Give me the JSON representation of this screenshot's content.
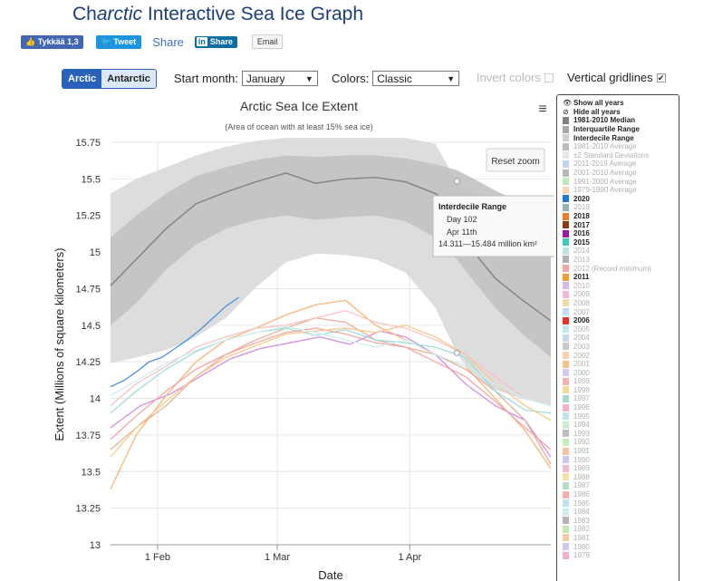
{
  "header": {
    "title_pre": "Ch",
    "title_italic": "arctic",
    "title_post": " Interactive Sea Ice Graph"
  },
  "share": {
    "facebook": "Tykkää 1,3",
    "twitter": "Tweet",
    "share": "Share",
    "linkedin_logo": "in",
    "linkedin": "Share",
    "email": "Email"
  },
  "controls": {
    "hemisphere": [
      "Arctic",
      "Antarctic"
    ],
    "start_month_label": "Start month:",
    "start_month_value": "January",
    "colors_label": "Colors:",
    "colors_value": "Classic",
    "invert_label": "Invert colors",
    "gridlines_label": "Vertical gridlines",
    "gridlines_checked": "✔"
  },
  "chart_controls": {
    "reset_zoom": "Reset zoom",
    "menu_icon": "≡"
  },
  "tooltip": {
    "title": "Interdecile Range",
    "day": "Day 102",
    "date": "Apr 11th",
    "range": "14.311—15.484 million km²"
  },
  "legend": [
    {
      "label": "Show all years",
      "icon": "eye-icon",
      "bold": true
    },
    {
      "label": "Hide all years",
      "icon": "eye-slash-icon",
      "bold": true
    },
    {
      "label": "1981-2010 Median",
      "color": "#808080",
      "bold": true
    },
    {
      "label": "Interquartile Range",
      "color": "#a8a8a8",
      "bold": true
    },
    {
      "label": "Interdecile Range",
      "color": "#cfcfcf",
      "bold": true
    },
    {
      "label": "1981-2010 Average",
      "color": "#bdbdbd",
      "bold": false
    },
    {
      "label": "±2 Standard Deviations",
      "color": "#e6e6e6",
      "bold": false
    },
    {
      "label": "2011-2019 Average",
      "color": "#bcd6f0",
      "bold": false
    },
    {
      "label": "2001-2010 Average",
      "color": "#b8b8b8",
      "bold": false
    },
    {
      "label": "1991-2000 Average",
      "color": "#bfe8bf",
      "bold": false
    },
    {
      "label": "1979-1990 Average",
      "color": "#f4d6b0",
      "bold": false
    },
    {
      "label": "2020",
      "color": "#1f78d6",
      "bold": true
    },
    {
      "label": "2019",
      "color": "#8fb6b6",
      "bold": false
    },
    {
      "label": "2018",
      "color": "#f07f22",
      "bold": true
    },
    {
      "label": "2017",
      "color": "#8b3a16",
      "bold": true
    },
    {
      "label": "2016",
      "color": "#9b19a8",
      "bold": true
    },
    {
      "label": "2015",
      "color": "#3cc8c0",
      "bold": true
    },
    {
      "label": "2014",
      "color": "#b5e6e3",
      "bold": false
    },
    {
      "label": "2013",
      "color": "#b0b0b0",
      "bold": false
    },
    {
      "label": "2012 (Record minimum)",
      "color": "#f4a3a3",
      "bold": false
    },
    {
      "label": "2011",
      "color": "#f0a030",
      "bold": true
    },
    {
      "label": "2010",
      "color": "#d3b8ee",
      "bold": false
    },
    {
      "label": "2009",
      "color": "#f4b6d6",
      "bold": false
    },
    {
      "label": "2008",
      "color": "#eedcaa",
      "bold": false
    },
    {
      "label": "2007",
      "color": "#bfe0ee",
      "bold": false
    },
    {
      "label": "2006",
      "color": "#e8302a",
      "bold": true
    },
    {
      "label": "2005",
      "color": "#bfe8ea",
      "bold": false
    },
    {
      "label": "2004",
      "color": "#c4d6f0",
      "bold": false
    },
    {
      "label": "2003",
      "color": "#c8c8c8",
      "bold": false
    },
    {
      "label": "2002",
      "color": "#f7d2a6",
      "bold": false
    },
    {
      "label": "2001",
      "color": "#f6c28c",
      "bold": false
    },
    {
      "label": "2000",
      "color": "#d8c8f0",
      "bold": false
    },
    {
      "label": "1999",
      "color": "#f6b2b2",
      "bold": false
    },
    {
      "label": "1998",
      "color": "#f2d9a0",
      "bold": false
    },
    {
      "label": "1997",
      "color": "#a8d8d0",
      "bold": false
    },
    {
      "label": "1996",
      "color": "#f4b0c4",
      "bold": false
    },
    {
      "label": "1995",
      "color": "#bfe6f0",
      "bold": false
    },
    {
      "label": "1994",
      "color": "#c8ecd0",
      "bold": false
    },
    {
      "label": "1993",
      "color": "#bdbdbd",
      "bold": false
    },
    {
      "label": "1992",
      "color": "#c8ecb8",
      "bold": false
    },
    {
      "label": "1991",
      "color": "#f6c6a0",
      "bold": false
    },
    {
      "label": "1990",
      "color": "#c8c8f0",
      "bold": false
    },
    {
      "label": "1989",
      "color": "#f2b8d0",
      "bold": false
    },
    {
      "label": "1988",
      "color": "#f2e0a8",
      "bold": false
    },
    {
      "label": "1987",
      "color": "#b8dcc8",
      "bold": false
    },
    {
      "label": "1986",
      "color": "#f6b0b0",
      "bold": false
    },
    {
      "label": "1985",
      "color": "#c0e4f2",
      "bold": false
    },
    {
      "label": "1984",
      "color": "#cdeef0",
      "bold": false
    },
    {
      "label": "1983",
      "color": "#b4b4b4",
      "bold": false
    },
    {
      "label": "1982",
      "color": "#c8e6b4",
      "bold": false
    },
    {
      "label": "1981",
      "color": "#f4cca0",
      "bold": false
    },
    {
      "label": "1980",
      "color": "#d0c8f0",
      "bold": false
    },
    {
      "label": "1979",
      "color": "#f4b0c0",
      "bold": false
    }
  ],
  "chart_data": {
    "type": "line",
    "title": "Arctic Sea Ice Extent",
    "subtitle": "(Area of ocean with at least 15% sea ice)",
    "xlabel": "Date",
    "ylabel": "Extent (Millions of square kilometers)",
    "xlim": [
      21,
      124
    ],
    "ylim": [
      13,
      15.75
    ],
    "yticks": [
      13,
      13.25,
      13.5,
      13.75,
      14,
      14.25,
      14.5,
      14.75,
      15,
      15.25,
      15.5,
      15.75
    ],
    "ytick_labels": [
      "13",
      "13.25",
      "13.5",
      "13.75",
      "14",
      "14.25",
      "14.5",
      "14.75",
      "15",
      "15.25",
      "15.5",
      "15.75"
    ],
    "xticks": [
      32,
      60,
      91
    ],
    "xtick_labels": [
      "1 Feb",
      "1 Mar",
      "1 Apr"
    ],
    "series": [
      {
        "name": "Interdecile Range",
        "type": "band",
        "color": "#d9d9d9",
        "x": [
          21,
          27,
          34,
          41,
          48,
          55,
          62,
          69,
          76,
          83,
          90,
          97,
          102,
          106,
          111,
          117,
          124
        ],
        "low": [
          14.24,
          14.28,
          14.33,
          14.42,
          14.55,
          14.76,
          14.93,
          14.99,
          14.98,
          14.95,
          14.86,
          14.62,
          14.31,
          14.15,
          14.06,
          14.0,
          13.95
        ],
        "high": [
          15.4,
          15.5,
          15.58,
          15.66,
          15.72,
          15.76,
          15.78,
          15.78,
          15.78,
          15.78,
          15.78,
          15.74,
          15.48,
          15.4,
          15.32,
          15.25,
          15.18
        ]
      },
      {
        "name": "Interquartile Range",
        "type": "band",
        "color": "#c2c2c2",
        "x": [
          21,
          27,
          34,
          41,
          48,
          55,
          62,
          69,
          76,
          83,
          90,
          97,
          102,
          106,
          111,
          117,
          124
        ],
        "low": [
          14.5,
          14.65,
          14.88,
          15.05,
          15.16,
          15.22,
          15.25,
          15.22,
          15.24,
          15.25,
          15.21,
          15.1,
          14.95,
          14.8,
          14.62,
          14.45,
          14.28
        ],
        "high": [
          15.1,
          15.25,
          15.4,
          15.52,
          15.58,
          15.63,
          15.66,
          15.65,
          15.66,
          15.66,
          15.64,
          15.6,
          15.56,
          15.5,
          15.42,
          15.34,
          15.25
        ]
      },
      {
        "name": "1981-2010 Median",
        "type": "line",
        "color": "#888888",
        "x": [
          21,
          27,
          34,
          41,
          48,
          55,
          62,
          69,
          76,
          83,
          90,
          97,
          102,
          106,
          111,
          117,
          124
        ],
        "values": [
          14.77,
          14.95,
          15.16,
          15.33,
          15.41,
          15.48,
          15.54,
          15.47,
          15.5,
          15.51,
          15.48,
          15.4,
          15.29,
          15.0,
          14.82,
          14.68,
          14.53
        ]
      },
      {
        "name": "2020",
        "type": "line",
        "color": "#4a90d9",
        "x": [
          21,
          24,
          27,
          30,
          33,
          36,
          39,
          42,
          45,
          48,
          51
        ],
        "values": [
          14.08,
          14.12,
          14.18,
          14.25,
          14.28,
          14.34,
          14.4,
          14.47,
          14.55,
          14.63,
          14.69
        ]
      },
      {
        "name": "2016",
        "type": "line",
        "color": "#d48ee0",
        "x": [
          21,
          28,
          35,
          42,
          49,
          56,
          63,
          70,
          77,
          84,
          90,
          97,
          104,
          111,
          118,
          124
        ],
        "values": [
          13.8,
          13.95,
          14.03,
          14.15,
          14.27,
          14.34,
          14.38,
          14.42,
          14.37,
          14.46,
          14.42,
          14.3,
          14.1,
          13.95,
          13.85,
          13.6
        ]
      },
      {
        "name": "2018",
        "type": "line",
        "color": "#f6b57a",
        "x": [
          21,
          27,
          34,
          41,
          48,
          55,
          62,
          69,
          76,
          83,
          90,
          97,
          104,
          111,
          118,
          124
        ],
        "values": [
          13.38,
          13.75,
          14.02,
          14.25,
          14.4,
          14.48,
          14.57,
          14.64,
          14.67,
          14.5,
          14.4,
          14.3,
          14.22,
          14.0,
          13.78,
          13.52
        ]
      },
      {
        "name": "2017",
        "type": "line",
        "color": "#e6b09a",
        "x": [
          21,
          27,
          34,
          41,
          48,
          55,
          62,
          69,
          76,
          83,
          90,
          97,
          104,
          111,
          118,
          124
        ],
        "values": [
          13.65,
          13.8,
          13.95,
          14.15,
          14.3,
          14.4,
          14.48,
          14.55,
          14.52,
          14.4,
          14.35,
          14.3,
          14.2,
          14.05,
          13.85,
          13.55
        ]
      },
      {
        "name": "2015",
        "type": "line",
        "color": "#9fdcdc",
        "x": [
          21,
          27,
          34,
          41,
          48,
          55,
          62,
          69,
          76,
          83,
          90,
          97,
          104,
          111,
          118,
          124
        ],
        "values": [
          13.9,
          14.05,
          14.2,
          14.32,
          14.4,
          14.45,
          14.48,
          14.43,
          14.47,
          14.4,
          14.38,
          14.35,
          14.28,
          14.05,
          13.92,
          13.9
        ]
      },
      {
        "name": "2006",
        "type": "line",
        "color": "#f2a7a3",
        "x": [
          21,
          27,
          34,
          41,
          48,
          55,
          62,
          69,
          76,
          83,
          90,
          97,
          104,
          111,
          118,
          124
        ],
        "values": [
          13.72,
          13.88,
          14.05,
          14.2,
          14.3,
          14.38,
          14.45,
          14.48,
          14.44,
          14.38,
          14.35,
          14.25,
          14.15,
          13.98,
          13.8,
          13.65
        ]
      },
      {
        "name": "2011",
        "type": "line",
        "color": "#f7c98a",
        "x": [
          21,
          27,
          34,
          41,
          48,
          55,
          62,
          69,
          76,
          83,
          90,
          97,
          104,
          111,
          118,
          124
        ],
        "values": [
          13.6,
          13.8,
          13.98,
          14.15,
          14.28,
          14.36,
          14.44,
          14.46,
          14.48,
          14.45,
          14.5,
          14.42,
          14.3,
          14.1,
          13.95,
          13.85
        ]
      },
      {
        "name": "2012 (Record minimum)",
        "type": "line",
        "color": "#f7c3c3",
        "x": [
          21,
          27,
          34,
          41,
          48,
          55,
          62,
          69,
          76,
          83,
          90,
          97,
          104,
          111,
          118,
          124
        ],
        "values": [
          13.95,
          14.1,
          14.22,
          14.35,
          14.42,
          14.48,
          14.5,
          14.55,
          14.6,
          14.52,
          14.48,
          14.4,
          14.3,
          14.15,
          14.0,
          13.95
        ]
      },
      {
        "name": "2014",
        "type": "line",
        "color": "#cfeeee",
        "x": [
          21,
          27,
          34,
          41,
          48,
          55,
          62,
          69,
          76,
          83,
          90,
          97,
          104,
          111,
          118,
          124
        ],
        "values": [
          14.02,
          14.12,
          14.24,
          14.33,
          14.4,
          14.45,
          14.49,
          14.45,
          14.4,
          14.35,
          14.4,
          14.3,
          14.22,
          14.1,
          14.0,
          13.95
        ]
      }
    ],
    "tooltip_points": [
      {
        "x": 102,
        "y": 15.484
      },
      {
        "x": 102,
        "y": 14.311
      }
    ]
  }
}
